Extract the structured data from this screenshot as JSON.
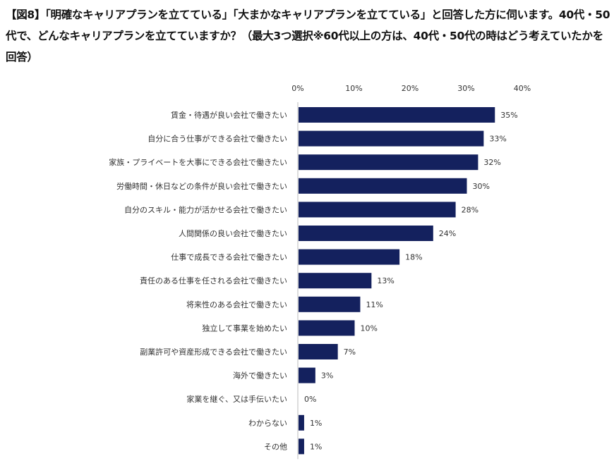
{
  "title": "【図8】「明確なキャリアプランを立てている」「大まかなキャリアプランを立てている」と回答した方に伺います。40代・50代で、どんなキャリアプランを立てていますか？（最大3つ選択※60代以上の方は、40代・50代の時はどう考えていたかを回答）",
  "chart_data": {
    "type": "bar",
    "orientation": "horizontal",
    "title": "【図8】「明確なキャリアプランを立てている」「大まかなキャリアプランを立てている」と回答した方に伺います。40代・50代で、どんなキャリアプランを立てていますか？（最大3つ選択※60代以上の方は、40代・50代の時はどう考えていたかを回答）",
    "categories": [
      "賃金・待遇が良い会社で働きたい",
      "自分に合う仕事ができる会社で働きたい",
      "家族・プライベートを大事にできる会社で働きたい",
      "労働時間・休日などの条件が良い会社で働きたい",
      "自分のスキル・能力が活かせる会社で働きたい",
      "人間関係の良い会社で働きたい",
      "仕事で成長できる会社で働きたい",
      "責任のある仕事を任される会社で働きたい",
      "将来性のある会社で働きたい",
      "独立して事業を始めたい",
      "副業許可や資産形成できる会社で働きたい",
      "海外で働きたい",
      "家業を継ぐ、又は手伝いたい",
      "わからない",
      "その他"
    ],
    "values": [
      35,
      33,
      32,
      30,
      28,
      24,
      18,
      13,
      11,
      10,
      7,
      3,
      0,
      1,
      1
    ],
    "value_labels": [
      "35%",
      "33%",
      "32%",
      "30%",
      "28%",
      "24%",
      "18%",
      "13%",
      "11%",
      "10%",
      "7%",
      "3%",
      "0%",
      "1%",
      "1%"
    ],
    "xlim": [
      0,
      40
    ],
    "xticks": [
      0,
      10,
      20,
      30,
      40
    ],
    "xtick_labels": [
      "0%",
      "10%",
      "20%",
      "30%",
      "40%"
    ],
    "xaxis_position": "top",
    "bar_color": "#14215e",
    "grid": false,
    "xlabel": "",
    "ylabel": ""
  }
}
